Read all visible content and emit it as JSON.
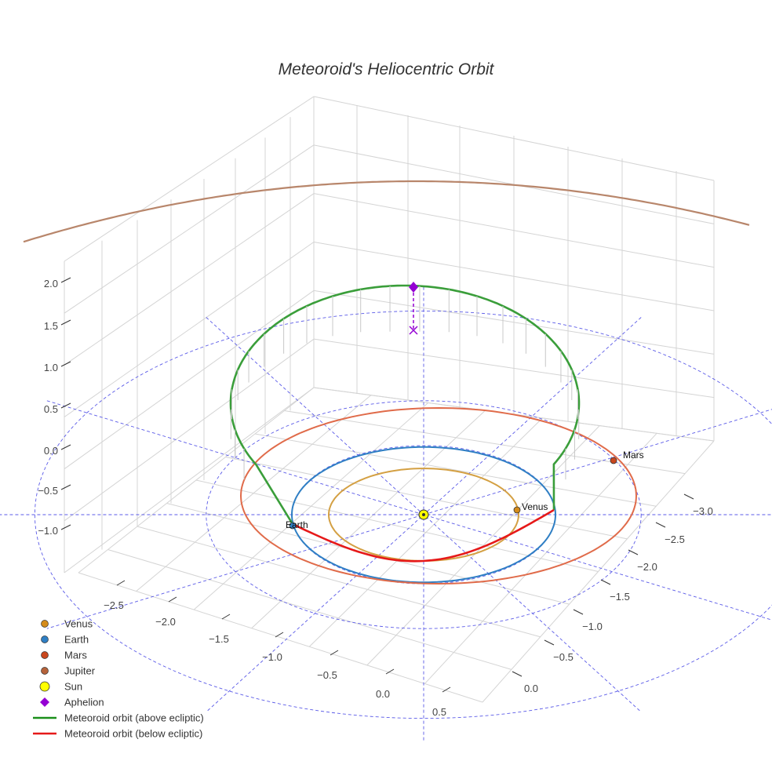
{
  "chart_data": {
    "type": "scatter3d",
    "title": "Meteoroid's Heliocentric Orbit",
    "x_ticks": [
      -2.5,
      -2.0,
      -1.5,
      -1.0,
      -0.5,
      0.0,
      0.5
    ],
    "x_tick_labels": [
      "−2.5",
      "−2.0",
      "−1.5",
      "−1.0",
      "−0.5",
      "0.0",
      "0.5"
    ],
    "y_ticks": [
      -3.0,
      -2.5,
      -2.0,
      -1.5,
      -1.0,
      -0.5,
      0.0
    ],
    "y_tick_labels": [
      "−3.0",
      "−2.5",
      "−2.0",
      "−1.5",
      "−1.0",
      "−0.5",
      "0.0"
    ],
    "z_ticks": [
      -1.0,
      -0.5,
      0.0,
      0.5,
      1.0,
      1.5,
      2.0
    ],
    "z_tick_labels": [
      "−1.0",
      "−0.5",
      "0.0",
      "0.5",
      "1.0",
      "1.5",
      "2.0"
    ],
    "grid": true,
    "legend_position": "bottom-left",
    "planets": [
      {
        "name": "Venus",
        "x": 0.72,
        "y": 0.0,
        "z": 0.0,
        "orbit_radius": 0.72,
        "color": "#d4a043",
        "label": "Venus"
      },
      {
        "name": "Earth",
        "x": -0.91,
        "y": -0.41,
        "z": 0.0,
        "orbit_radius": 1.0,
        "color": "#2f7fc4",
        "label": "Earth"
      },
      {
        "name": "Mars",
        "x": 0.85,
        "y": 1.3,
        "z": 0.0,
        "orbit_radius": 1.52,
        "color": "#e06b4a",
        "label": "Mars"
      },
      {
        "name": "Jupiter",
        "orbit_radius": 5.2,
        "color": "#b8866b"
      }
    ],
    "sun": {
      "name": "Sun",
      "x": 0.0,
      "y": 0.0,
      "z": 0.0,
      "color": "#ffff00"
    },
    "aphelion": {
      "name": "Aphelion",
      "x": -0.1,
      "y": 1.7,
      "z": 1.78,
      "color": "#9400d3"
    },
    "meteoroid_orbit": {
      "a": 1.4,
      "e": 0.3,
      "inclination_deg": 50
    },
    "legend": [
      {
        "label": "Venus",
        "kind": "dot",
        "color": "#d48b1a"
      },
      {
        "label": "Earth",
        "kind": "dot",
        "color": "#2f7fc4"
      },
      {
        "label": "Mars",
        "kind": "dot",
        "color": "#c9471e"
      },
      {
        "label": "Jupiter",
        "kind": "dot",
        "color": "#b5623a"
      },
      {
        "label": "Sun",
        "kind": "sun",
        "color": "#ffff00"
      },
      {
        "label": "Aphelion",
        "kind": "diamond",
        "color": "#9400d3"
      },
      {
        "label": "Meteoroid orbit (above ecliptic)",
        "kind": "line",
        "color": "#1a8f1a"
      },
      {
        "label": "Meteoroid orbit (below ecliptic)",
        "kind": "line",
        "color": "#e61919"
      }
    ]
  }
}
